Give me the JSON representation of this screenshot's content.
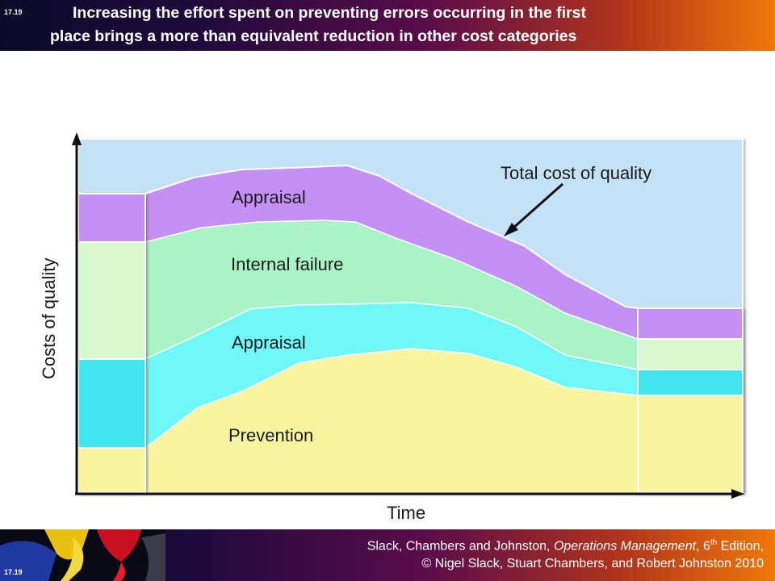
{
  "header": {
    "slide_number": "17.19",
    "title_line1": "Increasing the effort spent on preventing errors occurring in the first",
    "title_line2": "place brings a more than equivalent reduction in other cost categories"
  },
  "diagram": {
    "y_axis_label": "Costs of quality",
    "x_axis_label": "Time",
    "band_labels": {
      "appraisal_top": "Appraisal",
      "internal_failure": "Internal failure",
      "appraisal_bottom": "Appraisal",
      "prevention": "Prevention"
    },
    "annotation": "Total cost of quality",
    "colors": {
      "background": "#c4e2f6",
      "external_failure": "#c490f6",
      "internal_failure": "#a8f4c6",
      "appraisal": "#6ef8f8",
      "prevention": "#f8f4a0"
    }
  },
  "footer": {
    "slide_number": "17.19",
    "credit_authors": "Slack, Chambers and Johnston, ",
    "credit_book": "Operations Management",
    "credit_edition_num": ", 6",
    "credit_edition_sup": "th",
    "credit_edition_rest": " Edition,",
    "credit_line2": "© Nigel Slack, Stuart Chambers, and Robert Johnston 2010"
  }
}
